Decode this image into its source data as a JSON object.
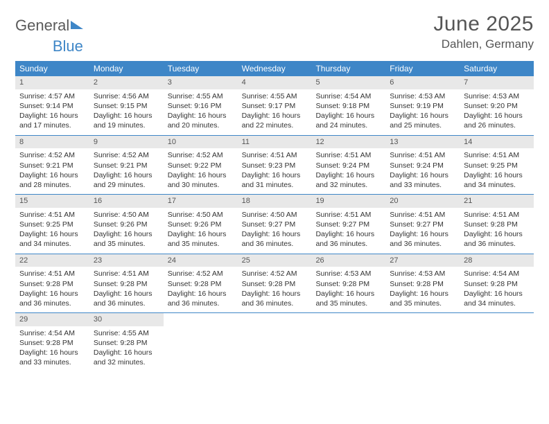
{
  "brand": {
    "part1": "General",
    "part2": "Blue"
  },
  "title": "June 2025",
  "location": "Dahlen, Germany",
  "colors": {
    "header_bg": "#3e86c7",
    "daynum_bg": "#e8e8e8",
    "text": "#333333",
    "muted": "#555555",
    "page_bg": "#ffffff"
  },
  "dow": [
    "Sunday",
    "Monday",
    "Tuesday",
    "Wednesday",
    "Thursday",
    "Friday",
    "Saturday"
  ],
  "weeks": [
    [
      {
        "n": "1",
        "sr": "4:57 AM",
        "ss": "9:14 PM",
        "dl": "16 hours and 17 minutes."
      },
      {
        "n": "2",
        "sr": "4:56 AM",
        "ss": "9:15 PM",
        "dl": "16 hours and 19 minutes."
      },
      {
        "n": "3",
        "sr": "4:55 AM",
        "ss": "9:16 PM",
        "dl": "16 hours and 20 minutes."
      },
      {
        "n": "4",
        "sr": "4:55 AM",
        "ss": "9:17 PM",
        "dl": "16 hours and 22 minutes."
      },
      {
        "n": "5",
        "sr": "4:54 AM",
        "ss": "9:18 PM",
        "dl": "16 hours and 24 minutes."
      },
      {
        "n": "6",
        "sr": "4:53 AM",
        "ss": "9:19 PM",
        "dl": "16 hours and 25 minutes."
      },
      {
        "n": "7",
        "sr": "4:53 AM",
        "ss": "9:20 PM",
        "dl": "16 hours and 26 minutes."
      }
    ],
    [
      {
        "n": "8",
        "sr": "4:52 AM",
        "ss": "9:21 PM",
        "dl": "16 hours and 28 minutes."
      },
      {
        "n": "9",
        "sr": "4:52 AM",
        "ss": "9:21 PM",
        "dl": "16 hours and 29 minutes."
      },
      {
        "n": "10",
        "sr": "4:52 AM",
        "ss": "9:22 PM",
        "dl": "16 hours and 30 minutes."
      },
      {
        "n": "11",
        "sr": "4:51 AM",
        "ss": "9:23 PM",
        "dl": "16 hours and 31 minutes."
      },
      {
        "n": "12",
        "sr": "4:51 AM",
        "ss": "9:24 PM",
        "dl": "16 hours and 32 minutes."
      },
      {
        "n": "13",
        "sr": "4:51 AM",
        "ss": "9:24 PM",
        "dl": "16 hours and 33 minutes."
      },
      {
        "n": "14",
        "sr": "4:51 AM",
        "ss": "9:25 PM",
        "dl": "16 hours and 34 minutes."
      }
    ],
    [
      {
        "n": "15",
        "sr": "4:51 AM",
        "ss": "9:25 PM",
        "dl": "16 hours and 34 minutes."
      },
      {
        "n": "16",
        "sr": "4:50 AM",
        "ss": "9:26 PM",
        "dl": "16 hours and 35 minutes."
      },
      {
        "n": "17",
        "sr": "4:50 AM",
        "ss": "9:26 PM",
        "dl": "16 hours and 35 minutes."
      },
      {
        "n": "18",
        "sr": "4:50 AM",
        "ss": "9:27 PM",
        "dl": "16 hours and 36 minutes."
      },
      {
        "n": "19",
        "sr": "4:51 AM",
        "ss": "9:27 PM",
        "dl": "16 hours and 36 minutes."
      },
      {
        "n": "20",
        "sr": "4:51 AM",
        "ss": "9:27 PM",
        "dl": "16 hours and 36 minutes."
      },
      {
        "n": "21",
        "sr": "4:51 AM",
        "ss": "9:28 PM",
        "dl": "16 hours and 36 minutes."
      }
    ],
    [
      {
        "n": "22",
        "sr": "4:51 AM",
        "ss": "9:28 PM",
        "dl": "16 hours and 36 minutes."
      },
      {
        "n": "23",
        "sr": "4:51 AM",
        "ss": "9:28 PM",
        "dl": "16 hours and 36 minutes."
      },
      {
        "n": "24",
        "sr": "4:52 AM",
        "ss": "9:28 PM",
        "dl": "16 hours and 36 minutes."
      },
      {
        "n": "25",
        "sr": "4:52 AM",
        "ss": "9:28 PM",
        "dl": "16 hours and 36 minutes."
      },
      {
        "n": "26",
        "sr": "4:53 AM",
        "ss": "9:28 PM",
        "dl": "16 hours and 35 minutes."
      },
      {
        "n": "27",
        "sr": "4:53 AM",
        "ss": "9:28 PM",
        "dl": "16 hours and 35 minutes."
      },
      {
        "n": "28",
        "sr": "4:54 AM",
        "ss": "9:28 PM",
        "dl": "16 hours and 34 minutes."
      }
    ],
    [
      {
        "n": "29",
        "sr": "4:54 AM",
        "ss": "9:28 PM",
        "dl": "16 hours and 33 minutes."
      },
      {
        "n": "30",
        "sr": "4:55 AM",
        "ss": "9:28 PM",
        "dl": "16 hours and 32 minutes."
      },
      null,
      null,
      null,
      null,
      null
    ]
  ],
  "labels": {
    "sunrise": "Sunrise: ",
    "sunset": "Sunset: ",
    "daylight": "Daylight: "
  }
}
